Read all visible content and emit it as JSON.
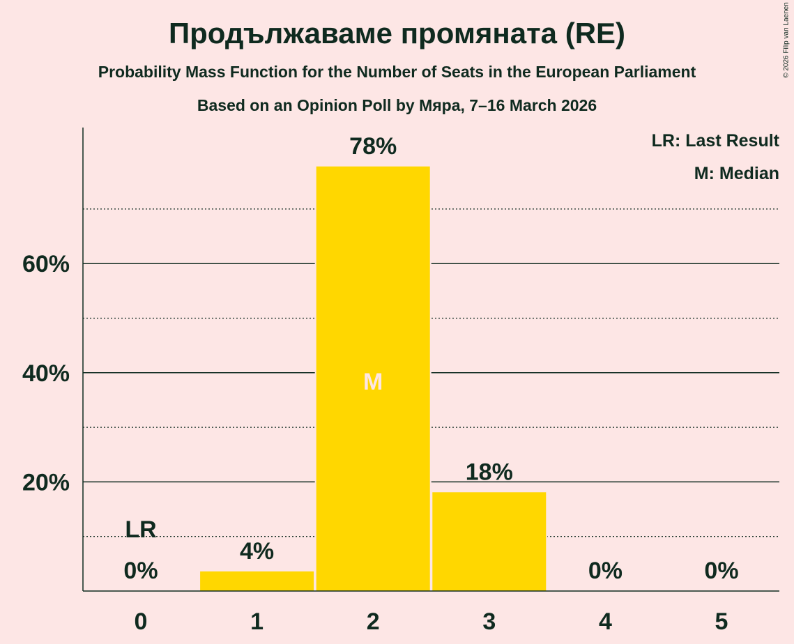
{
  "title": "Продължаваме промяната (RE)",
  "subtitle1": "Probability Mass Function for the Number of Seats in the European Parliament",
  "subtitle2": "Based on an Opinion Poll by Мяра, 7–16 March 2026",
  "copyright": "© 2026 Filip van Laenen",
  "legend": {
    "lr": "LR: Last Result",
    "m": "M: Median"
  },
  "colors": {
    "bar": "#ffd700",
    "text": "#0f2a1f",
    "background": "#fde6e5"
  },
  "chart_data": {
    "type": "bar",
    "categories": [
      "0",
      "1",
      "2",
      "3",
      "4",
      "5"
    ],
    "values": [
      0,
      3.6,
      77.8,
      18.1,
      0,
      0
    ],
    "labels": [
      "0%",
      "4%",
      "78%",
      "18%",
      "0%",
      "0%"
    ],
    "ylim": [
      0,
      85
    ],
    "yticks": [
      20,
      40,
      60
    ],
    "ytick_labels": [
      "20%",
      "40%",
      "60%"
    ],
    "minor_gridlines": [
      10,
      30,
      50,
      70
    ],
    "last_result_index": 0,
    "last_result_label": "LR",
    "median_index": 2,
    "median_label": "M",
    "legend_position": "top-right"
  }
}
